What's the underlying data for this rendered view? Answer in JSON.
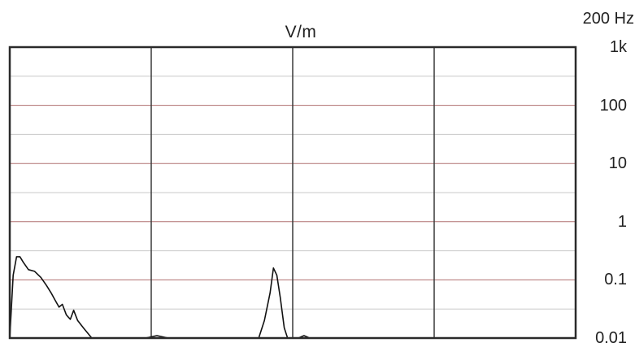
{
  "chart_data": {
    "type": "line",
    "title": "V/m",
    "frequency_label": "200 Hz",
    "ytick_labels": [
      "1k",
      "100",
      "10",
      "1",
      "0.1",
      "0.01"
    ],
    "ytick_values": [
      1000,
      100,
      10,
      1,
      0.1,
      0.01
    ],
    "yscale": "log",
    "ylim": [
      0.01,
      1000
    ],
    "xlim": [
      0,
      100
    ],
    "grid": true,
    "colors": {
      "frame": "#2a2a2a",
      "decade_grid": "#b07070",
      "minor_grid": "#c8c8c8",
      "vertical_grid": "#3a3a3a",
      "trace": "#111111"
    },
    "series": [
      {
        "x": [
          0,
          0.6,
          1.2,
          1.8,
          2.4,
          3.3,
          4.4,
          5.5,
          6.5,
          7.3,
          8.0,
          8.7,
          9.3,
          10.0,
          10.7,
          11.3,
          12.0,
          13.0,
          14.5,
          18.0,
          24.0,
          26.0,
          28.0,
          30.0,
          42.0,
          44.0,
          45.0,
          46.0,
          46.6,
          47.2,
          47.8,
          48.5,
          49.1,
          49.7,
          50.3,
          51.0,
          52.0,
          53.0,
          54.0,
          55.0,
          60.0,
          100.0
        ],
        "y": [
          0.01,
          0.12,
          0.25,
          0.25,
          0.2,
          0.15,
          0.14,
          0.11,
          0.08,
          0.06,
          0.045,
          0.034,
          0.038,
          0.025,
          0.021,
          0.03,
          0.02,
          0.015,
          0.01,
          0.01,
          0.01,
          0.011,
          0.01,
          0.01,
          0.01,
          0.01,
          0.02,
          0.06,
          0.16,
          0.12,
          0.05,
          0.015,
          0.01,
          0.01,
          0.01,
          0.01,
          0.011,
          0.01,
          0.01,
          0.01,
          0.01,
          0.01
        ]
      }
    ]
  }
}
